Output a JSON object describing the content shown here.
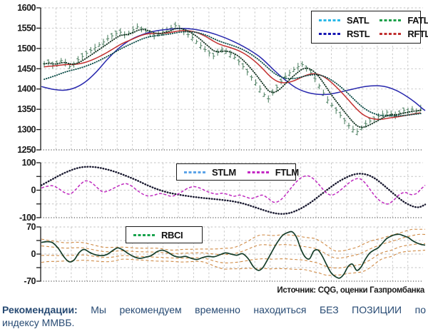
{
  "legend": {
    "satl": "SATL",
    "fatl": "FATL",
    "rstl": "RSTL",
    "rftl": "RFTL",
    "stlm": "STLM",
    "ftlm": "FTLM",
    "rbci": "RBCI"
  },
  "colors": {
    "satl_swatch": "#2ab9e8",
    "fatl_swatch": "#1ca04a",
    "rstl_swatch": "#1717b3",
    "rftl_swatch": "#c03030",
    "stlm_swatch": "#5ba3e8",
    "ftlm_swatch": "#c428c4",
    "rbci_swatch": "#18a34d",
    "satl_line": "#0f4f4a",
    "fatl_line": "#10321f",
    "rstl_line": "#2727ad",
    "rftl_line": "#c23030",
    "stlm_line": "#17172e",
    "ftlm_line": "#bf2abf",
    "rbci_line": "#143d29",
    "bands": "#cf8a45",
    "bars": "#57876a",
    "grid": "#c2c2c2",
    "axis": "#1a1a1a",
    "text": "#1a1a1a"
  },
  "source_note": "Источник: CQG, оценки Газпромбанка",
  "recommendation": {
    "label": "Рекомендации:",
    "line1_rest": " Мы рекомендуем временно находиться БЕЗ ПОЗИЦИИ по",
    "line2": "индексу ММВБ."
  },
  "chart_data": [
    {
      "type": "line",
      "name": "micex_price_panel",
      "title": "",
      "ylim": [
        1250,
        1600
      ],
      "y_ticks": [
        1600,
        1550,
        1500,
        1450,
        1400,
        1350,
        1300,
        1250
      ],
      "legend_entries": [
        "SATL",
        "FATL",
        "RSTL",
        "RFTL"
      ],
      "bars_close": [
        1462,
        1466,
        1458,
        1463,
        1470,
        1465,
        1455,
        1462,
        1472,
        1480,
        1488,
        1495,
        1502,
        1509,
        1516,
        1524,
        1531,
        1537,
        1540,
        1534,
        1538,
        1546,
        1553,
        1549,
        1542,
        1536,
        1531,
        1536,
        1541,
        1546,
        1551,
        1556,
        1549,
        1541,
        1534,
        1527,
        1517,
        1507,
        1497,
        1489,
        1481,
        1490,
        1498,
        1493,
        1486,
        1478,
        1468,
        1455,
        1442,
        1429,
        1415,
        1400,
        1386,
        1376,
        1390,
        1404,
        1419,
        1431,
        1440,
        1448,
        1455,
        1460,
        1452,
        1440,
        1425,
        1408,
        1390,
        1373,
        1360,
        1348,
        1335,
        1322,
        1310,
        1300,
        1295,
        1304,
        1314,
        1321,
        1327,
        1332,
        1338,
        1343,
        1339,
        1335,
        1341,
        1347,
        1344,
        1350,
        1346,
        1352
      ],
      "rstl_points": [
        [
          58,
          1406
        ],
        [
          75,
          1399
        ],
        [
          90,
          1397
        ],
        [
          105,
          1403
        ],
        [
          120,
          1418
        ],
        [
          135,
          1442
        ],
        [
          150,
          1472
        ],
        [
          165,
          1498
        ],
        [
          180,
          1518
        ],
        [
          195,
          1531
        ],
        [
          215,
          1542
        ],
        [
          240,
          1548
        ],
        [
          262,
          1549
        ],
        [
          285,
          1543
        ],
        [
          305,
          1533
        ],
        [
          325,
          1519
        ],
        [
          345,
          1501
        ],
        [
          365,
          1478
        ],
        [
          385,
          1445
        ],
        [
          400,
          1422
        ],
        [
          415,
          1403
        ],
        [
          430,
          1392
        ],
        [
          445,
          1387
        ],
        [
          460,
          1387
        ],
        [
          478,
          1393
        ],
        [
          495,
          1400
        ],
        [
          512,
          1406
        ],
        [
          528,
          1408
        ],
        [
          542,
          1405
        ],
        [
          556,
          1396
        ],
        [
          570,
          1382
        ],
        [
          582,
          1367
        ],
        [
          592,
          1352
        ],
        [
          596,
          1347
        ]
      ]
    },
    {
      "type": "line",
      "name": "oscillator_panel",
      "ylim": [
        -100,
        100
      ],
      "y_ticks": [
        100,
        0,
        -100
      ],
      "legend_entries": [
        "STLM",
        "FTLM"
      ],
      "stlm_points": [
        [
          58,
          18
        ],
        [
          70,
          35
        ],
        [
          82,
          52
        ],
        [
          95,
          68
        ],
        [
          108,
          80
        ],
        [
          120,
          85
        ],
        [
          133,
          84
        ],
        [
          146,
          78
        ],
        [
          160,
          68
        ],
        [
          175,
          54
        ],
        [
          190,
          38
        ],
        [
          205,
          20
        ],
        [
          220,
          4
        ],
        [
          235,
          -8
        ],
        [
          250,
          -16
        ],
        [
          265,
          -22
        ],
        [
          280,
          -27
        ],
        [
          295,
          -31
        ],
        [
          310,
          -35
        ],
        [
          325,
          -40
        ],
        [
          340,
          -48
        ],
        [
          355,
          -60
        ],
        [
          370,
          -73
        ],
        [
          382,
          -82
        ],
        [
          392,
          -86
        ],
        [
          402,
          -85
        ],
        [
          412,
          -78
        ],
        [
          425,
          -62
        ],
        [
          438,
          -40
        ],
        [
          450,
          -16
        ],
        [
          462,
          8
        ],
        [
          474,
          30
        ],
        [
          486,
          47
        ],
        [
          496,
          57
        ],
        [
          506,
          60
        ],
        [
          516,
          55
        ],
        [
          526,
          42
        ],
        [
          536,
          22
        ],
        [
          546,
          0
        ],
        [
          556,
          -22
        ],
        [
          566,
          -42
        ],
        [
          576,
          -56
        ],
        [
          584,
          -62
        ],
        [
          590,
          -60
        ],
        [
          596,
          -52
        ]
      ],
      "ftlm_points": [
        [
          58,
          8
        ],
        [
          66,
          14
        ],
        [
          74,
          16
        ],
        [
          82,
          6
        ],
        [
          90,
          -8
        ],
        [
          98,
          -14
        ],
        [
          106,
          2
        ],
        [
          113,
          22
        ],
        [
          120,
          34
        ],
        [
          128,
          28
        ],
        [
          136,
          10
        ],
        [
          144,
          -6
        ],
        [
          152,
          -2
        ],
        [
          160,
          8
        ],
        [
          168,
          18
        ],
        [
          176,
          24
        ],
        [
          184,
          16
        ],
        [
          192,
          0
        ],
        [
          200,
          -14
        ],
        [
          208,
          -21
        ],
        [
          216,
          -18
        ],
        [
          224,
          -12
        ],
        [
          232,
          -16
        ],
        [
          240,
          -22
        ],
        [
          248,
          -16
        ],
        [
          256,
          -4
        ],
        [
          264,
          8
        ],
        [
          272,
          13
        ],
        [
          280,
          8
        ],
        [
          288,
          -2
        ],
        [
          296,
          -10
        ],
        [
          304,
          -14
        ],
        [
          312,
          -11
        ],
        [
          320,
          -16
        ],
        [
          328,
          -22
        ],
        [
          336,
          -18
        ],
        [
          344,
          -24
        ],
        [
          352,
          -30
        ],
        [
          360,
          -24
        ],
        [
          368,
          -18
        ],
        [
          376,
          -30
        ],
        [
          384,
          -44
        ],
        [
          392,
          -38
        ],
        [
          400,
          -18
        ],
        [
          408,
          8
        ],
        [
          416,
          32
        ],
        [
          424,
          48
        ],
        [
          432,
          52
        ],
        [
          440,
          40
        ],
        [
          448,
          18
        ],
        [
          456,
          -6
        ],
        [
          464,
          -18
        ],
        [
          472,
          -10
        ],
        [
          480,
          6
        ],
        [
          488,
          24
        ],
        [
          496,
          38
        ],
        [
          504,
          42
        ],
        [
          512,
          26
        ],
        [
          520,
          -2
        ],
        [
          528,
          -28
        ],
        [
          536,
          -44
        ],
        [
          544,
          -50
        ],
        [
          552,
          -36
        ],
        [
          560,
          -16
        ],
        [
          568,
          -8
        ],
        [
          576,
          -16
        ],
        [
          584,
          -12
        ],
        [
          590,
          4
        ],
        [
          596,
          18
        ]
      ]
    },
    {
      "type": "line",
      "name": "rbci_panel",
      "ylim": [
        -70,
        70
      ],
      "y_ticks": [
        70,
        0,
        -70
      ],
      "legend_entries": [
        "RBCI"
      ],
      "rbci_points": [
        [
          58,
          30
        ],
        [
          66,
          32
        ],
        [
          74,
          29
        ],
        [
          82,
          14
        ],
        [
          90,
          -8
        ],
        [
          97,
          -20
        ],
        [
          104,
          -15
        ],
        [
          111,
          4
        ],
        [
          118,
          12
        ],
        [
          126,
          4
        ],
        [
          134,
          -2
        ],
        [
          142,
          -4
        ],
        [
          150,
          -1
        ],
        [
          158,
          9
        ],
        [
          165,
          16
        ],
        [
          172,
          11
        ],
        [
          180,
          1
        ],
        [
          188,
          -7
        ],
        [
          196,
          -11
        ],
        [
          204,
          -8
        ],
        [
          212,
          -4
        ],
        [
          220,
          6
        ],
        [
          228,
          10
        ],
        [
          236,
          4
        ],
        [
          244,
          -5
        ],
        [
          252,
          -8
        ],
        [
          260,
          -6
        ],
        [
          268,
          -11
        ],
        [
          276,
          -14
        ],
        [
          284,
          -9
        ],
        [
          292,
          -6
        ],
        [
          300,
          -7
        ],
        [
          308,
          -2
        ],
        [
          316,
          3
        ],
        [
          324,
          0
        ],
        [
          332,
          -3
        ],
        [
          340,
          1
        ],
        [
          348,
          -12
        ],
        [
          355,
          -32
        ],
        [
          362,
          -42
        ],
        [
          368,
          -36
        ],
        [
          374,
          -18
        ],
        [
          380,
          2
        ],
        [
          388,
          28
        ],
        [
          396,
          48
        ],
        [
          404,
          56
        ],
        [
          410,
          57
        ],
        [
          416,
          42
        ],
        [
          422,
          12
        ],
        [
          428,
          -8
        ],
        [
          434,
          -12
        ],
        [
          440,
          8
        ],
        [
          446,
          10
        ],
        [
          452,
          -6
        ],
        [
          458,
          -28
        ],
        [
          464,
          -48
        ],
        [
          470,
          -58
        ],
        [
          476,
          -62
        ],
        [
          482,
          -52
        ],
        [
          488,
          -32
        ],
        [
          494,
          -26
        ],
        [
          500,
          -42
        ],
        [
          506,
          -34
        ],
        [
          512,
          -14
        ],
        [
          518,
          2
        ],
        [
          524,
          10
        ],
        [
          530,
          16
        ],
        [
          536,
          28
        ],
        [
          542,
          40
        ],
        [
          548,
          46
        ],
        [
          554,
          50
        ],
        [
          560,
          51
        ],
        [
          566,
          47
        ],
        [
          572,
          43
        ],
        [
          578,
          35
        ],
        [
          584,
          29
        ],
        [
          590,
          25
        ],
        [
          596,
          23
        ]
      ]
    }
  ]
}
